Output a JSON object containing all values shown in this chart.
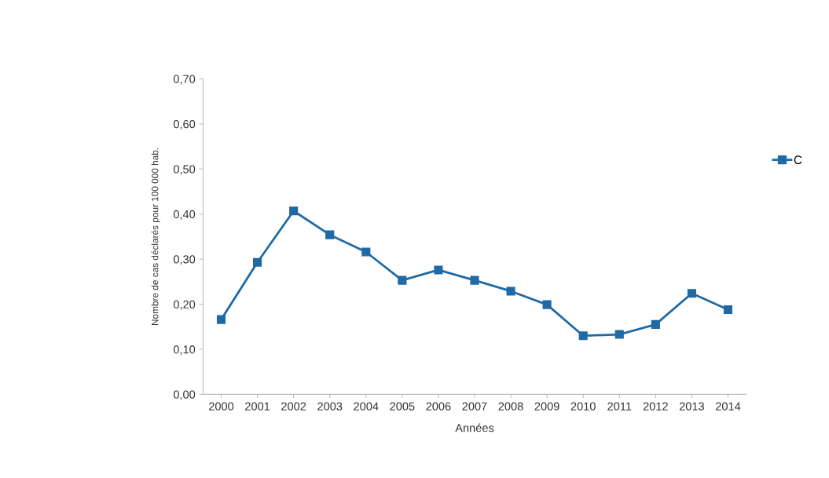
{
  "chart_data": {
    "type": "line",
    "xlabel": "Années",
    "ylabel": "Nombre de cas déclarés pour 100 000 hab.",
    "categories": [
      "2000",
      "2001",
      "2002",
      "2003",
      "2004",
      "2005",
      "2006",
      "2007",
      "2008",
      "2009",
      "2010",
      "2011",
      "2012",
      "2013",
      "2014"
    ],
    "series": [
      {
        "name": "C",
        "color": "#1f6aa5",
        "values": [
          0.166,
          0.293,
          0.407,
          0.354,
          0.316,
          0.253,
          0.276,
          0.253,
          0.229,
          0.199,
          0.13,
          0.133,
          0.155,
          0.224,
          0.188
        ]
      }
    ],
    "ylim": [
      0,
      0.7
    ],
    "yticks": [
      {
        "value": 0,
        "label": "0,00"
      },
      {
        "value": 0.1,
        "label": "0,10"
      },
      {
        "value": 0.2,
        "label": "0,20"
      },
      {
        "value": 0.3,
        "label": "0,30"
      },
      {
        "value": 0.4,
        "label": "0,40"
      },
      {
        "value": 0.5,
        "label": "0,50"
      },
      {
        "value": 0.6,
        "label": "0,60"
      },
      {
        "value": 0.7,
        "label": "0,70"
      }
    ],
    "marker": "square",
    "line_style": "solid",
    "legend": "right",
    "grid": false
  }
}
